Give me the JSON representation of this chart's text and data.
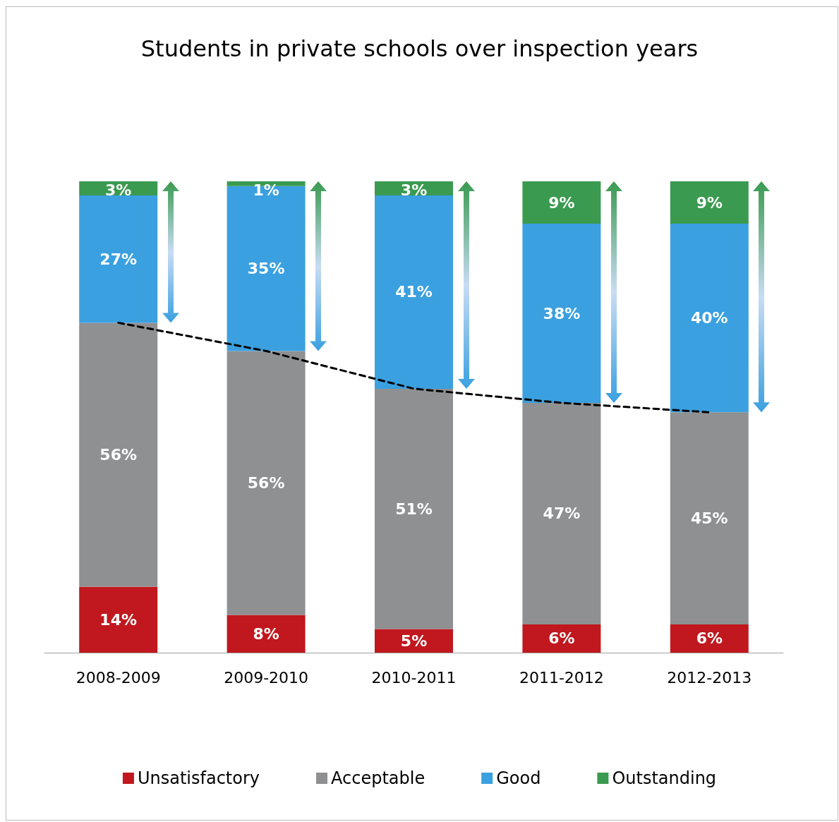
{
  "chart_data": {
    "type": "bar",
    "title": "Students in private schools over inspection years",
    "categories": [
      "2008-2009",
      "2009-2010",
      "2010-2011",
      "2011-2012",
      "2012-2013"
    ],
    "stacked": true,
    "legend": "bottom",
    "grid": false,
    "series": [
      {
        "name": "Unsatisfactory",
        "color": "#c0181e",
        "values": [
          14,
          8,
          5,
          6,
          6
        ],
        "value_labels": [
          "14%",
          "8%",
          "5%",
          "6%",
          "6%"
        ]
      },
      {
        "name": "Acceptable",
        "color": "#8f9092",
        "values": [
          56,
          56,
          51,
          47,
          45
        ],
        "value_labels": [
          "56%",
          "56%",
          "51%",
          "47%",
          "45%"
        ]
      },
      {
        "name": "Good",
        "color": "#3aa0e0",
        "values": [
          27,
          35,
          41,
          38,
          40
        ],
        "value_labels": [
          "27%",
          "35%",
          "41%",
          "38%",
          "40%"
        ]
      },
      {
        "name": "Outstanding",
        "color": "#3a9a50",
        "values": [
          3,
          1,
          3,
          9,
          9
        ],
        "value_labels": [
          "3%",
          "1%",
          "3%",
          "9%",
          "9%"
        ]
      },
      {
        "type": "line",
        "color": "#000000",
        "line_style": "dashed",
        "marker": "none",
        "values": [
          70,
          64,
          56,
          53,
          51
        ]
      }
    ]
  }
}
